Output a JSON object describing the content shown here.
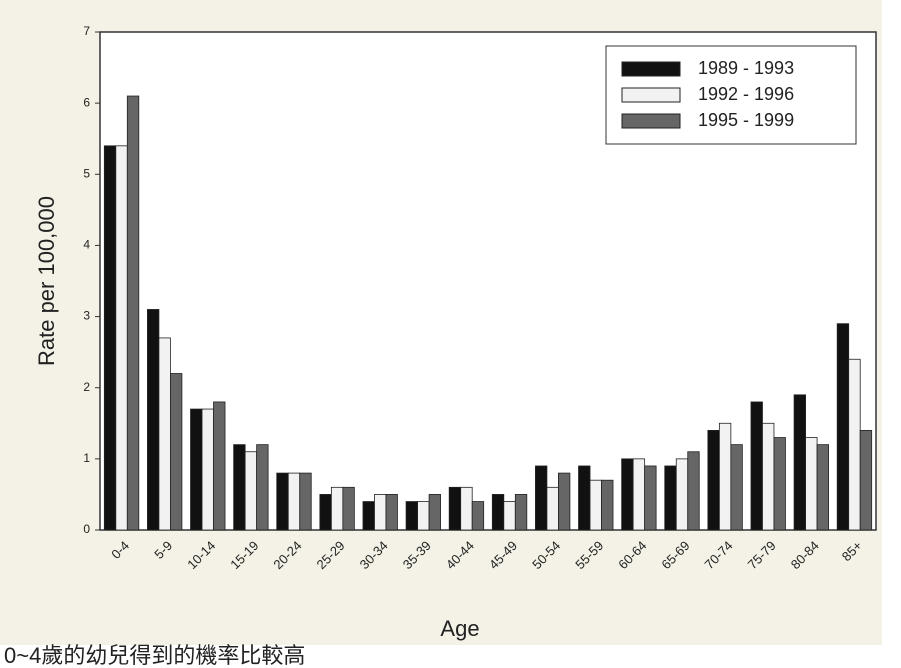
{
  "chart_data": {
    "type": "bar",
    "x_label": "Age",
    "y_label": "Rate per 100,000",
    "categories": [
      "0-4",
      "5-9",
      "10-14",
      "15-19",
      "20-24",
      "25-29",
      "30-34",
      "35-39",
      "40-44",
      "45-49",
      "50-54",
      "55-59",
      "60-64",
      "65-69",
      "70-74",
      "75-79",
      "80-84",
      "85+"
    ],
    "series": [
      {
        "name": "1989 - 1993",
        "color": "#111111",
        "values": [
          5.4,
          3.1,
          1.7,
          1.2,
          0.8,
          0.5,
          0.4,
          0.4,
          0.6,
          0.5,
          0.9,
          0.9,
          1.0,
          0.9,
          1.4,
          1.8,
          1.9,
          2.9
        ]
      },
      {
        "name": "1992 - 1996",
        "color": "#f2f2f2",
        "values": [
          5.4,
          2.7,
          1.7,
          1.1,
          0.8,
          0.6,
          0.5,
          0.4,
          0.6,
          0.4,
          0.6,
          0.7,
          1.0,
          1.0,
          1.5,
          1.5,
          1.3,
          2.4
        ]
      },
      {
        "name": "1995 - 1999",
        "color": "#666666",
        "values": [
          6.1,
          2.2,
          1.8,
          1.2,
          0.8,
          0.6,
          0.5,
          0.5,
          0.4,
          0.5,
          0.8,
          0.7,
          0.9,
          1.1,
          1.2,
          1.3,
          1.2,
          1.4
        ]
      }
    ],
    "ylim": [
      0,
      7
    ],
    "yticks": [
      0,
      1,
      2,
      3,
      4,
      5,
      6,
      7
    ],
    "grid": false,
    "legend": "top-right"
  },
  "caption": "0~4歲的幼兒得到的機率比較高"
}
